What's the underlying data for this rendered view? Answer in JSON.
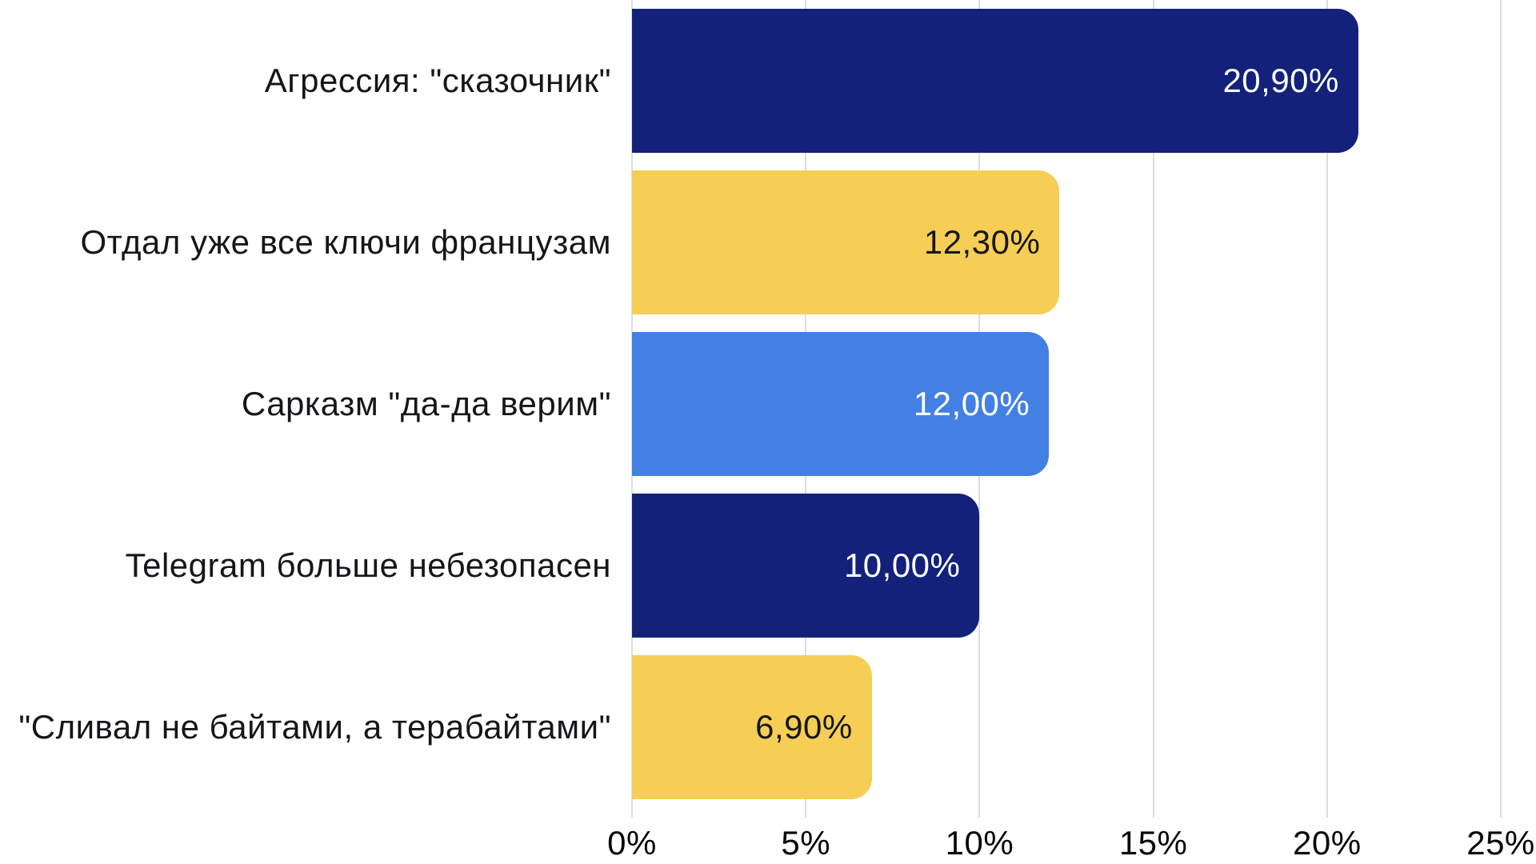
{
  "chart_data": {
    "type": "bar",
    "orientation": "horizontal",
    "title": "",
    "xlabel": "",
    "ylabel": "",
    "categories": [
      "Агрессия: \"сказочник\"",
      "Отдал уже все ключи французам",
      "Сарказм \"да-да верим\"",
      "Telegram больше небезопасен",
      "\"Сливал не байтами, а терабайтами\""
    ],
    "values": [
      20.9,
      12.3,
      12.0,
      10.0,
      6.9
    ],
    "value_labels": [
      "20,90%",
      "12,30%",
      "12,00%",
      "10,00%",
      "6,90%"
    ],
    "bar_colors": [
      "#13217A",
      "#F6CE55",
      "#4380E4",
      "#13217A",
      "#F6CE55"
    ],
    "value_text_colors": [
      "#FFFFFF",
      "#161616",
      "#FFFFFF",
      "#FFFFFF",
      "#161616"
    ],
    "x_ticks": [
      {
        "label": "0%",
        "value": 0
      },
      {
        "label": "5%",
        "value": 5
      },
      {
        "label": "10%",
        "value": 10
      },
      {
        "label": "15%",
        "value": 15
      },
      {
        "label": "20%",
        "value": 20
      },
      {
        "label": "25%",
        "value": 25
      }
    ],
    "xlim": [
      0,
      25
    ],
    "grid": true,
    "legend": "none"
  },
  "colors": {
    "background": "#FFFFFF",
    "gridline": "#DEDEDE",
    "category_text": "#14161C",
    "axis_text": "#060606"
  }
}
